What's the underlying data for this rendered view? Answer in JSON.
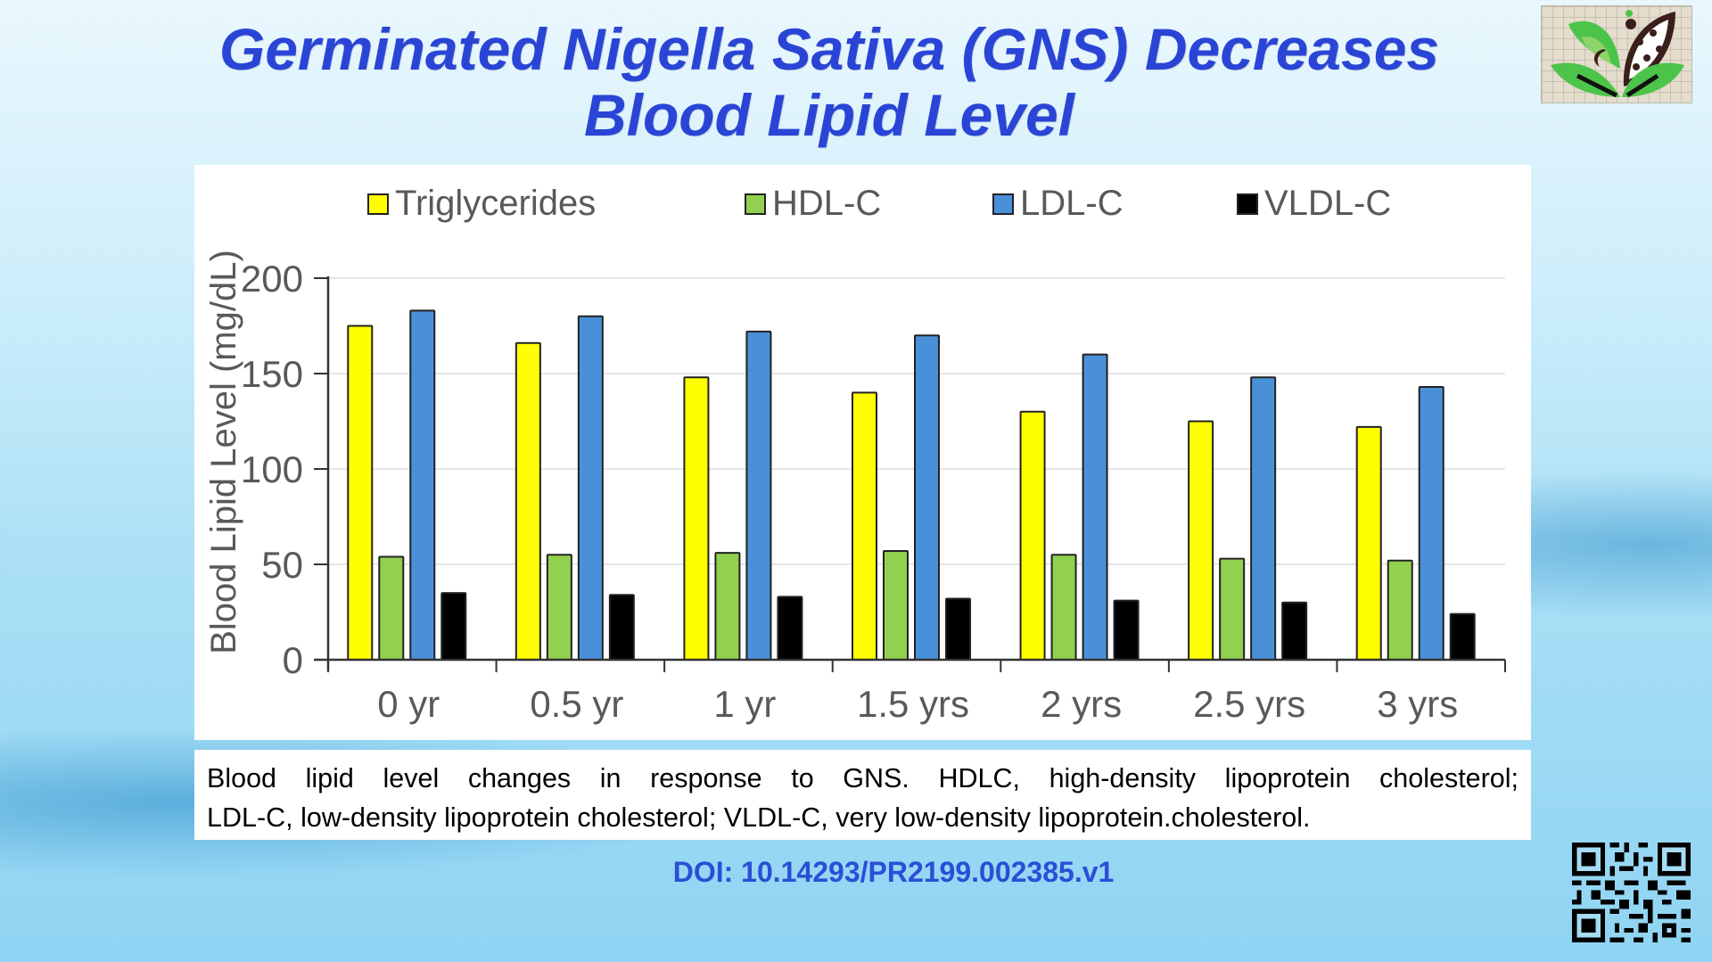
{
  "slide": {
    "title_line1": "Germinated Nigella Sativa  (GNS) Decreases",
    "title_line2": "Blood Lipid Level",
    "caption_line1": "Blood lipid level changes in response to GNS. HDLC, high-density lipoprotein cholesterol;",
    "caption_line2": "LDL-C, low-density lipoprotein cholesterol; VLDL-C, very low-density lipoprotein.cholesterol.",
    "doi": "DOI: 10.14293/PR2199.002385.v1",
    "logo_icon": "leaf-seed-logo-icon",
    "qr_icon": "qr-code-icon"
  },
  "colors": {
    "title": "#2a45d6",
    "doi": "#2a4fd6",
    "triglycerides": "#ffff00",
    "hdl": "#92d050",
    "ldl": "#4a90d9",
    "vldl": "#000000"
  },
  "chart_data": {
    "type": "bar",
    "title": "",
    "xlabel": "",
    "ylabel": "Blood Lipid Level (mg/dL)",
    "ylim": [
      0,
      200
    ],
    "yticks": [
      0,
      50,
      100,
      150,
      200
    ],
    "grid": true,
    "legend_position": "top",
    "categories": [
      "0 yr",
      "0.5 yr",
      "1 yr",
      "1.5 yrs",
      "2 yrs",
      "2.5 yrs",
      "3 yrs"
    ],
    "series": [
      {
        "name": "Triglycerides",
        "color": "#ffff00",
        "values": [
          175,
          166,
          148,
          140,
          130,
          125,
          122
        ]
      },
      {
        "name": "HDL-C",
        "color": "#92d050",
        "values": [
          54,
          55,
          56,
          57,
          55,
          53,
          52
        ]
      },
      {
        "name": "LDL-C",
        "color": "#4a90d9",
        "values": [
          183,
          180,
          172,
          170,
          160,
          148,
          143
        ]
      },
      {
        "name": "VLDL-C",
        "color": "#000000",
        "values": [
          35,
          34,
          33,
          32,
          31,
          30,
          24
        ]
      }
    ]
  }
}
